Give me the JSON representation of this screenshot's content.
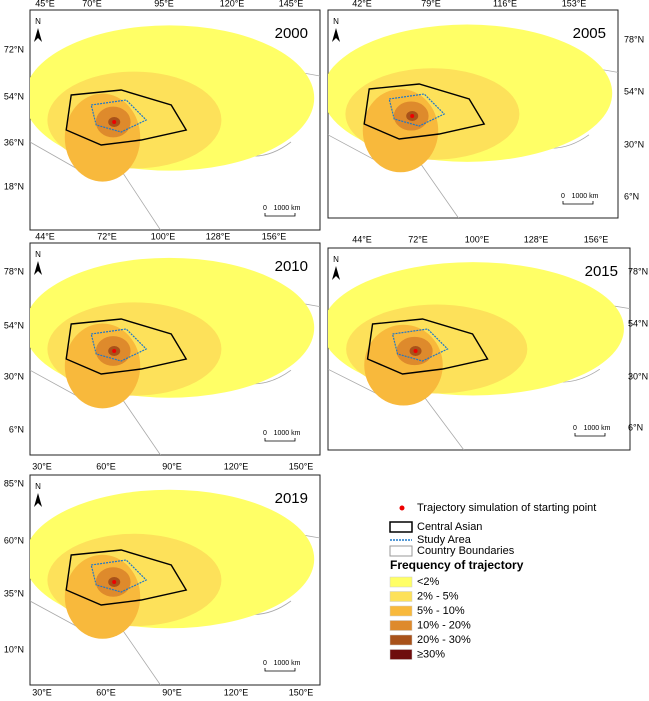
{
  "panels": [
    {
      "year": "2000",
      "top_labels": [
        "45°E",
        "70°E",
        "95°E",
        "120°E",
        "145°E"
      ],
      "side_labels": [
        "72°N",
        "54°N",
        "36°N",
        "18°N"
      ],
      "north": "N",
      "scale_zero": "0",
      "scale_label": "1000 km"
    },
    {
      "year": "2005",
      "top_labels": [
        "42°E",
        "79°E",
        "116°E",
        "153°E"
      ],
      "side_labels": [
        "78°N",
        "54°N",
        "30°N",
        "6°N"
      ],
      "north": "N",
      "scale_zero": "0",
      "scale_label": "1000 km"
    },
    {
      "year": "2010",
      "top_labels": [
        "44°E",
        "72°E",
        "100°E",
        "128°E",
        "156°E"
      ],
      "side_labels": [
        "78°N",
        "54°N",
        "30°N",
        "6°N"
      ],
      "north": "N",
      "scale_zero": "0",
      "scale_label": "1000 km"
    },
    {
      "year": "2015",
      "top_labels": [
        "44°E",
        "72°E",
        "100°E",
        "128°E",
        "156°E"
      ],
      "side_labels": [
        "78°N",
        "54°N",
        "30°N",
        "6°N"
      ],
      "north": "N",
      "scale_zero": "0",
      "scale_label": "1000 km"
    },
    {
      "year": "2019",
      "top_labels": [
        "30°E",
        "60°E",
        "90°E",
        "120°E",
        "150°E"
      ],
      "bottom_labels": [
        "30°E",
        "60°E",
        "90°E",
        "120°E",
        "150°E"
      ],
      "side_labels": [
        "85°N",
        "60°N",
        "35°N",
        "10°N"
      ],
      "north": "N",
      "scale_zero": "0",
      "scale_label": "1000 km"
    }
  ],
  "legend": {
    "symbols": [
      "Trajectory simulation of starting point",
      "Central Asian",
      "Study Area",
      "Country Boundaries"
    ],
    "frequency_title": "Frequency of trajectory",
    "classes": [
      {
        "label": "<2%",
        "color": "#ffff66"
      },
      {
        "label": "2% - 5%",
        "color": "#fde15a"
      },
      {
        "label": "5% - 10%",
        "color": "#f8b93c"
      },
      {
        "label": "10% - 20%",
        "color": "#de8a2c"
      },
      {
        "label": "20% - 30%",
        "color": "#a8521a"
      },
      {
        "label": "≥30%",
        "color": "#6e0d0d"
      }
    ]
  }
}
